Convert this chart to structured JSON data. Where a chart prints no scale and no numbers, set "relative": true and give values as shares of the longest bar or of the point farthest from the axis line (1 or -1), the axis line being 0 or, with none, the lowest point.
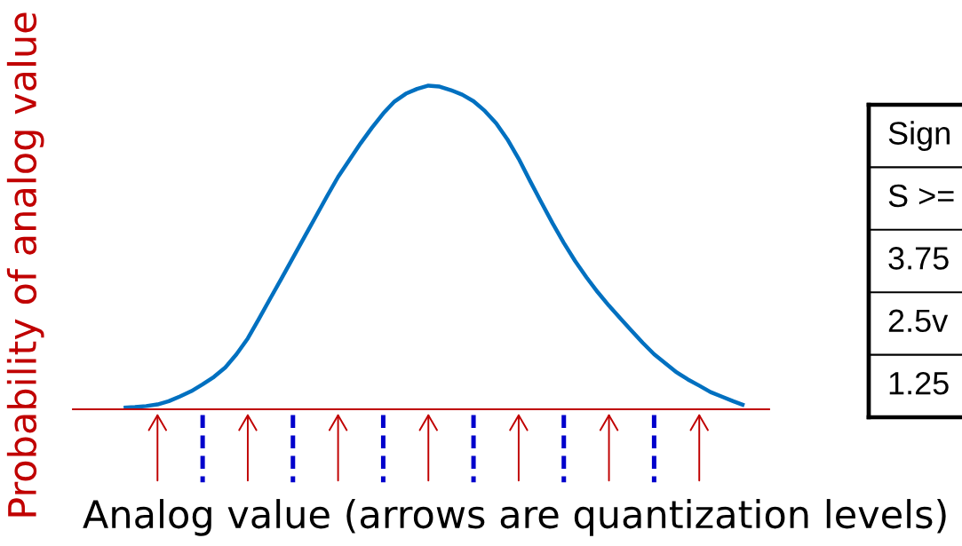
{
  "chart_data": [
    {
      "type": "line",
      "relative": true,
      "xlabel": "Analog value (arrows are quantization levels)",
      "ylabel": "Probability of analog value",
      "categories": [
        null,
        null,
        null,
        null,
        null,
        null,
        null,
        null,
        null,
        null,
        null,
        null,
        null,
        null,
        null,
        null,
        null,
        null,
        null,
        null,
        null,
        null,
        null,
        null,
        null,
        null,
        null,
        null,
        null,
        null,
        null,
        null,
        null,
        null,
        null,
        null,
        null,
        null,
        null,
        null,
        null,
        null,
        null,
        null,
        null,
        null,
        null,
        null,
        null,
        null,
        null,
        null,
        null,
        null,
        null,
        null
      ],
      "series": [
        {
          "color": "#0070c0",
          "values": [
            0.005,
            0.007,
            0.01,
            0.015,
            0.025,
            0.04,
            0.056,
            0.077,
            0.1,
            0.129,
            0.17,
            0.219,
            0.28,
            0.343,
            0.405,
            0.468,
            0.531,
            0.594,
            0.657,
            0.718,
            0.77,
            0.822,
            0.87,
            0.914,
            0.951,
            0.975,
            0.99,
            1.0,
            0.997,
            0.986,
            0.972,
            0.952,
            0.922,
            0.884,
            0.834,
            0.774,
            0.706,
            0.64,
            0.575,
            0.514,
            0.458,
            0.408,
            0.362,
            0.32,
            0.281,
            0.243,
            0.205,
            0.17,
            0.142,
            0.114,
            0.092,
            0.073,
            0.053,
            0.039,
            0.025,
            0.012
          ]
        }
      ]
    },
    {
      "type": "other",
      "annotations": [
        "Sign",
        "S >=",
        "3.75",
        "2.5v",
        "1.25"
      ]
    }
  ]
}
